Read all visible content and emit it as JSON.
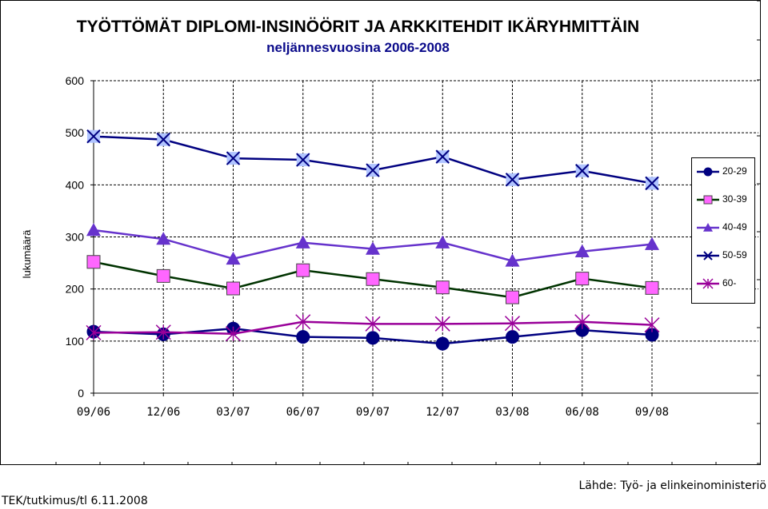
{
  "chart_data": {
    "type": "line",
    "title": "TYÖTTÖMÄT DIPLOMI-INSINÖÖRIT JA ARKKITEHDIT IKÄRYHMITTÄIN",
    "subtitle": "neljännesvuosina 2006-2008",
    "xlabel": "",
    "ylabel": "lukumäärä",
    "ylim": [
      0,
      600
    ],
    "yticks": [
      "0",
      "100",
      "200",
      "300",
      "400",
      "500",
      "600"
    ],
    "categories": [
      "09/06",
      "12/06",
      "03/07",
      "06/07",
      "09/07",
      "12/07",
      "03/08",
      "06/08",
      "09/08"
    ],
    "grid": true,
    "legend_position": "right",
    "series": [
      {
        "name": "20-29",
        "color": "#000080",
        "line_color": "#000080",
        "marker": "circle",
        "values": [
          118,
          113,
          124,
          108,
          106,
          95,
          108,
          121,
          112
        ]
      },
      {
        "name": "30-39",
        "color": "#ff66ff",
        "line_color": "#003300",
        "marker": "square",
        "values": [
          252,
          225,
          201,
          236,
          219,
          203,
          184,
          220,
          202
        ]
      },
      {
        "name": "40-49",
        "color": "#6633cc",
        "line_color": "#6633cc",
        "marker": "triangle",
        "values": [
          313,
          296,
          258,
          289,
          277,
          289,
          254,
          272,
          286
        ]
      },
      {
        "name": "50-59",
        "color": "#000080",
        "line_color": "#000080",
        "marker": "x",
        "values": [
          493,
          487,
          451,
          448,
          428,
          454,
          410,
          427,
          403
        ]
      },
      {
        "name": "60-",
        "color": "#990099",
        "line_color": "#990099",
        "marker": "star",
        "values": [
          116,
          117,
          114,
          137,
          133,
          133,
          134,
          137,
          131
        ]
      }
    ]
  },
  "footer": {
    "left": "TEK/tutkimus/tl 6.11.2008",
    "right": "Lähde: Työ- ja elinkeinoministeriö"
  }
}
